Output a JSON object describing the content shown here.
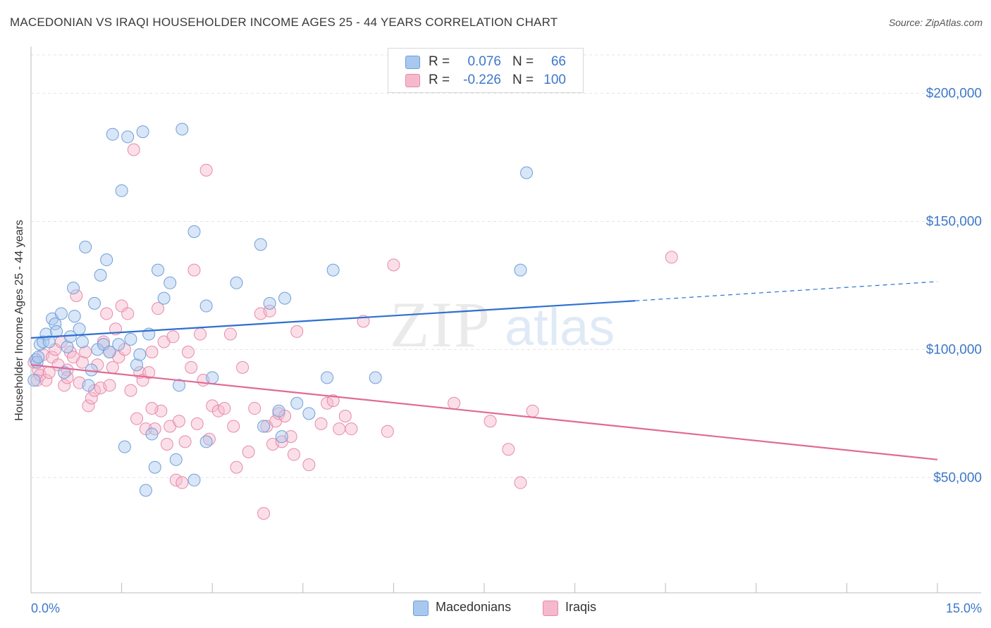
{
  "title": "MACEDONIAN VS IRAQI HOUSEHOLDER INCOME AGES 25 - 44 YEARS CORRELATION CHART",
  "source": "Source: ZipAtlas.com",
  "watermark": {
    "zip": "ZIP",
    "atlas": "atlas"
  },
  "colors": {
    "macedonian_fill": "#a8c8f0",
    "macedonian_stroke": "#6f9fd8",
    "macedonian_line": "#2f6fd0",
    "iraqi_fill": "#f6b8cc",
    "iraqi_stroke": "#e68aa8",
    "iraqi_line": "#e06a95",
    "axis_text": "#3d78c9",
    "grid": "#e3e3e3"
  },
  "correlation_box": {
    "rows": [
      {
        "r_label": "R =",
        "r_value": "0.076",
        "n_label": "N =",
        "n_value": "66"
      },
      {
        "r_label": "R =",
        "r_value": "-0.226",
        "n_label": "N =",
        "n_value": "100"
      }
    ]
  },
  "legend": {
    "items": [
      "Macedonians",
      "Iraqis"
    ]
  },
  "chart_data": {
    "type": "scatter",
    "title": "MACEDONIAN VS IRAQI HOUSEHOLDER INCOME AGES 25 - 44 YEARS CORRELATION CHART",
    "xlabel": "",
    "ylabel": "Householder Income Ages 25 - 44 years",
    "xlim": [
      0,
      15
    ],
    "ylim": [
      5000,
      215000
    ],
    "x_ticks_labeled": [
      "0.0%",
      "15.0%"
    ],
    "y_ticks": [
      50000,
      100000,
      150000,
      200000
    ],
    "y_tick_labels": [
      "$50,000",
      "$100,000",
      "$150,000",
      "$200,000"
    ],
    "grid": true,
    "legend_position": "bottom-center",
    "series": [
      {
        "name": "Macedonians",
        "trend": {
          "x": [
            0,
            10,
            15
          ],
          "y": [
            104500,
            119000,
            126500
          ],
          "dashed_after": 10
        },
        "points": [
          [
            0.05,
            88000
          ],
          [
            0.08,
            96000
          ],
          [
            0.1,
            95000
          ],
          [
            0.12,
            97000
          ],
          [
            0.15,
            102000
          ],
          [
            0.2,
            103000
          ],
          [
            0.25,
            106000
          ],
          [
            0.3,
            103000
          ],
          [
            0.35,
            112000
          ],
          [
            0.4,
            110000
          ],
          [
            0.42,
            107000
          ],
          [
            0.5,
            114000
          ],
          [
            0.55,
            91000
          ],
          [
            0.6,
            101000
          ],
          [
            0.65,
            105000
          ],
          [
            0.7,
            124000
          ],
          [
            0.72,
            113000
          ],
          [
            0.8,
            108000
          ],
          [
            0.85,
            103000
          ],
          [
            0.9,
            140000
          ],
          [
            0.95,
            86000
          ],
          [
            1.0,
            92000
          ],
          [
            1.05,
            118000
          ],
          [
            1.1,
            100000
          ],
          [
            1.15,
            129000
          ],
          [
            1.2,
            102000
          ],
          [
            1.25,
            135000
          ],
          [
            1.3,
            99000
          ],
          [
            1.35,
            184000
          ],
          [
            1.45,
            102000
          ],
          [
            1.5,
            162000
          ],
          [
            1.55,
            62000
          ],
          [
            1.6,
            183000
          ],
          [
            1.65,
            104000
          ],
          [
            1.75,
            94000
          ],
          [
            1.8,
            98000
          ],
          [
            1.85,
            185000
          ],
          [
            1.9,
            45000
          ],
          [
            1.95,
            106000
          ],
          [
            2.0,
            67000
          ],
          [
            2.05,
            54000
          ],
          [
            2.1,
            131000
          ],
          [
            2.2,
            120000
          ],
          [
            2.3,
            126000
          ],
          [
            2.4,
            57000
          ],
          [
            2.45,
            86000
          ],
          [
            2.5,
            186000
          ],
          [
            2.7,
            49000
          ],
          [
            2.7,
            146000
          ],
          [
            2.9,
            117000
          ],
          [
            2.9,
            64000
          ],
          [
            3.0,
            89000
          ],
          [
            3.4,
            126000
          ],
          [
            3.8,
            141000
          ],
          [
            3.85,
            70000
          ],
          [
            3.95,
            118000
          ],
          [
            4.1,
            76000
          ],
          [
            4.15,
            66000
          ],
          [
            4.2,
            120000
          ],
          [
            4.4,
            79000
          ],
          [
            4.6,
            75000
          ],
          [
            4.9,
            89000
          ],
          [
            5.0,
            131000
          ],
          [
            5.7,
            89000
          ],
          [
            8.1,
            131000
          ],
          [
            8.2,
            169000
          ]
        ]
      },
      {
        "name": "Iraqis",
        "trend": {
          "x": [
            0,
            15
          ],
          "y": [
            94000,
            57000
          ]
        },
        "points": [
          [
            0.05,
            95000
          ],
          [
            0.1,
            88000
          ],
          [
            0.12,
            92000
          ],
          [
            0.15,
            90000
          ],
          [
            0.2,
            98000
          ],
          [
            0.25,
            88000
          ],
          [
            0.3,
            91000
          ],
          [
            0.35,
            97000
          ],
          [
            0.4,
            100000
          ],
          [
            0.45,
            94000
          ],
          [
            0.5,
            103000
          ],
          [
            0.55,
            86000
          ],
          [
            0.6,
            92000
          ],
          [
            0.65,
            99000
          ],
          [
            0.7,
            97000
          ],
          [
            0.75,
            121000
          ],
          [
            0.8,
            87000
          ],
          [
            0.85,
            95000
          ],
          [
            0.9,
            99000
          ],
          [
            0.95,
            78000
          ],
          [
            1.0,
            81000
          ],
          [
            1.05,
            84000
          ],
          [
            1.1,
            94000
          ],
          [
            1.15,
            85000
          ],
          [
            1.2,
            103000
          ],
          [
            1.25,
            114000
          ],
          [
            1.3,
            99000
          ],
          [
            1.35,
            93000
          ],
          [
            1.4,
            108000
          ],
          [
            1.45,
            97000
          ],
          [
            1.5,
            117000
          ],
          [
            1.55,
            100000
          ],
          [
            1.6,
            114000
          ],
          [
            1.65,
            84000
          ],
          [
            1.7,
            178000
          ],
          [
            1.75,
            73000
          ],
          [
            1.8,
            91000
          ],
          [
            1.85,
            88000
          ],
          [
            1.9,
            69000
          ],
          [
            1.95,
            91000
          ],
          [
            2.0,
            99000
          ],
          [
            2.05,
            69000
          ],
          [
            2.1,
            116000
          ],
          [
            2.15,
            76000
          ],
          [
            2.2,
            103000
          ],
          [
            2.25,
            63000
          ],
          [
            2.3,
            70000
          ],
          [
            2.35,
            105000
          ],
          [
            2.4,
            49000
          ],
          [
            2.45,
            72000
          ],
          [
            2.5,
            48000
          ],
          [
            2.55,
            64000
          ],
          [
            2.6,
            99000
          ],
          [
            2.65,
            93000
          ],
          [
            2.7,
            131000
          ],
          [
            2.75,
            71000
          ],
          [
            2.8,
            106000
          ],
          [
            2.85,
            88000
          ],
          [
            2.9,
            170000
          ],
          [
            2.95,
            65000
          ],
          [
            3.0,
            78000
          ],
          [
            3.1,
            76000
          ],
          [
            3.2,
            77000
          ],
          [
            3.3,
            106000
          ],
          [
            3.35,
            70000
          ],
          [
            3.4,
            54000
          ],
          [
            3.5,
            93000
          ],
          [
            3.6,
            60000
          ],
          [
            3.7,
            77000
          ],
          [
            3.8,
            114000
          ],
          [
            3.85,
            36000
          ],
          [
            3.9,
            70000
          ],
          [
            3.95,
            115000
          ],
          [
            4.0,
            63000
          ],
          [
            4.05,
            72000
          ],
          [
            4.1,
            75000
          ],
          [
            4.15,
            64000
          ],
          [
            4.2,
            74000
          ],
          [
            4.3,
            66000
          ],
          [
            4.35,
            59000
          ],
          [
            4.4,
            107000
          ],
          [
            4.6,
            55000
          ],
          [
            4.8,
            71000
          ],
          [
            4.9,
            79000
          ],
          [
            5.0,
            80000
          ],
          [
            5.1,
            69000
          ],
          [
            5.2,
            74000
          ],
          [
            5.3,
            69000
          ],
          [
            5.5,
            111000
          ],
          [
            6.0,
            133000
          ],
          [
            7.0,
            79000
          ],
          [
            7.9,
            61000
          ],
          [
            8.1,
            48000
          ],
          [
            8.3,
            76000
          ],
          [
            10.6,
            136000
          ],
          [
            5.9,
            68000
          ],
          [
            2.0,
            77000
          ],
          [
            1.3,
            86000
          ],
          [
            0.6,
            89000
          ],
          [
            7.6,
            72000
          ]
        ]
      }
    ]
  }
}
